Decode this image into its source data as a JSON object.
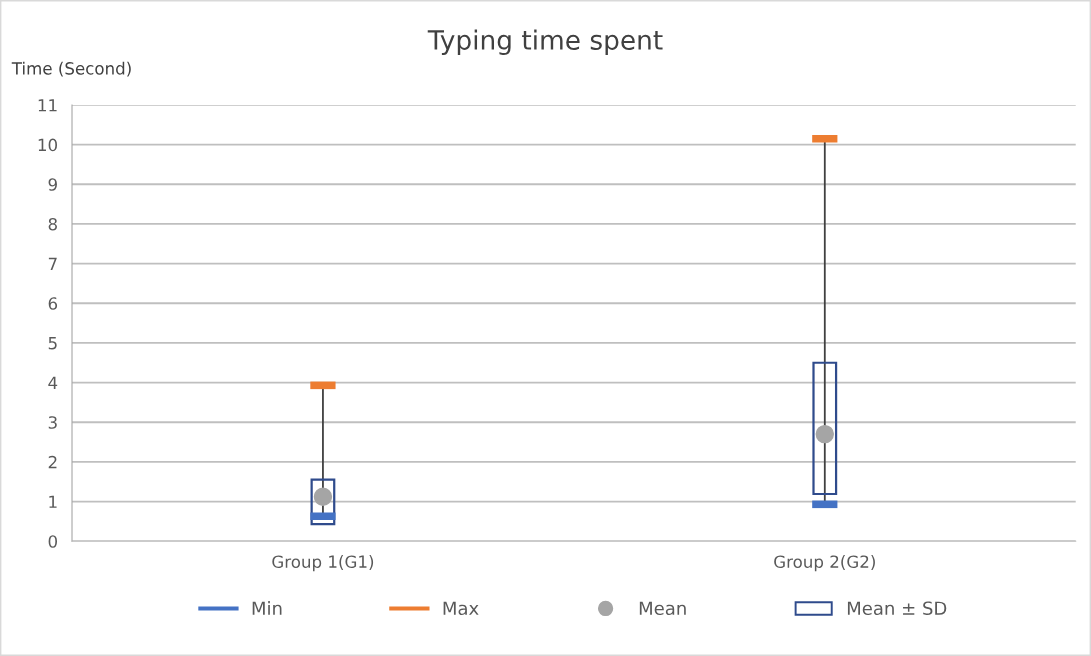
{
  "chart_data": {
    "type": "scatter",
    "title": "Typing time spent",
    "ylabel": "Time (Second)",
    "categories": [
      "Group 1(G1)",
      "Group 2(G2)"
    ],
    "series": [
      {
        "name": "Min",
        "type": "scatter",
        "color": "#4472c4",
        "values": [
          0.63,
          0.93
        ]
      },
      {
        "name": "Max",
        "type": "scatter",
        "color": "#ed7d31",
        "values": [
          3.93,
          10.15
        ]
      },
      {
        "name": "Mean",
        "marker": "circle",
        "color": "#a5a5a5",
        "values": [
          1.12,
          2.7
        ]
      },
      {
        "name": "Mean ± SD",
        "type": "bar",
        "color": "#2f4b8c",
        "base": [
          0.43,
          1.19
        ],
        "values": [
          1.12,
          3.31
        ]
      }
    ],
    "ylim": [
      0,
      11
    ],
    "yticks": [
      0,
      1,
      2,
      3,
      4,
      5,
      6,
      7,
      8,
      9,
      10,
      11
    ],
    "grid": "y",
    "legend": "bottom"
  }
}
